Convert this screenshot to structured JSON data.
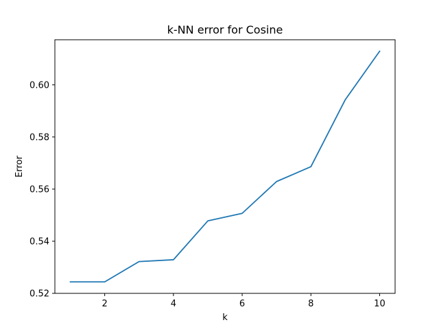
{
  "chart_data": {
    "type": "line",
    "title": "k-NN error for Cosine",
    "xlabel": "k",
    "ylabel": "Error",
    "x": [
      1,
      2,
      3,
      4,
      5,
      6,
      7,
      8,
      9,
      10
    ],
    "series": [
      {
        "values": [
          0.5244,
          0.5244,
          0.5322,
          0.5329,
          0.5478,
          0.5507,
          0.5629,
          0.5686,
          0.5943,
          0.6129
        ],
        "color": "#1f77b4"
      }
    ],
    "xlim": [
      0.55,
      10.45
    ],
    "ylim": [
      0.52,
      0.6173
    ],
    "xticks": [
      2,
      4,
      6,
      8,
      10
    ],
    "yticks": [
      0.52,
      0.54,
      0.56,
      0.58,
      0.6
    ],
    "xtick_labels": [
      "2",
      "4",
      "6",
      "8",
      "10"
    ],
    "ytick_labels": [
      "0.52",
      "0.54",
      "0.56",
      "0.58",
      "0.60"
    ],
    "grid": false,
    "legend": "none"
  }
}
